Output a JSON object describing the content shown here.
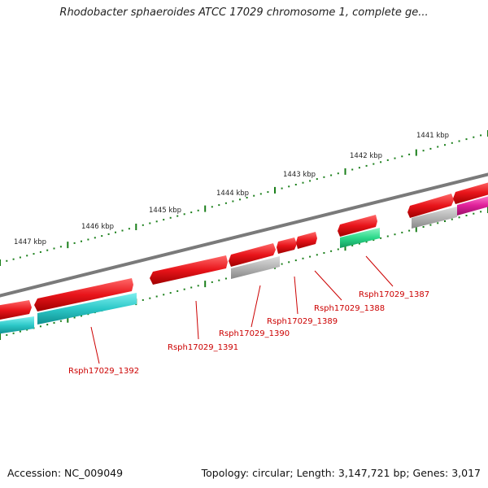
{
  "title": "Rhodobacter sphaeroides ATCC 17029 chromosome 1, complete ge...",
  "footer": {
    "accession": "Accession: NC_009049",
    "stats": "Topology: circular; Length: 3,147,721 bp; Genes: 3,017"
  },
  "colors": {
    "backbone": "#808080",
    "ticks": "#1a7f1a",
    "forward_gene": "#e8141a",
    "cds_cyan": "#2cc8c8",
    "cds_gray": "#b4b4b4",
    "cds_green": "#2bd88a",
    "cds_magenta": "#e0209a",
    "label": "#cc0000"
  },
  "ticks": [
    "1441 kbp",
    "1442 kbp",
    "1443 kbp",
    "1444 kbp",
    "1445 kbp",
    "1446 kbp",
    "1447 kbp"
  ],
  "gene_labels": [
    "Rsph17029_1387",
    "Rsph17029_1388",
    "Rsph17029_1389",
    "Rsph17029_1390",
    "Rsph17029_1391",
    "Rsph17029_1392"
  ]
}
